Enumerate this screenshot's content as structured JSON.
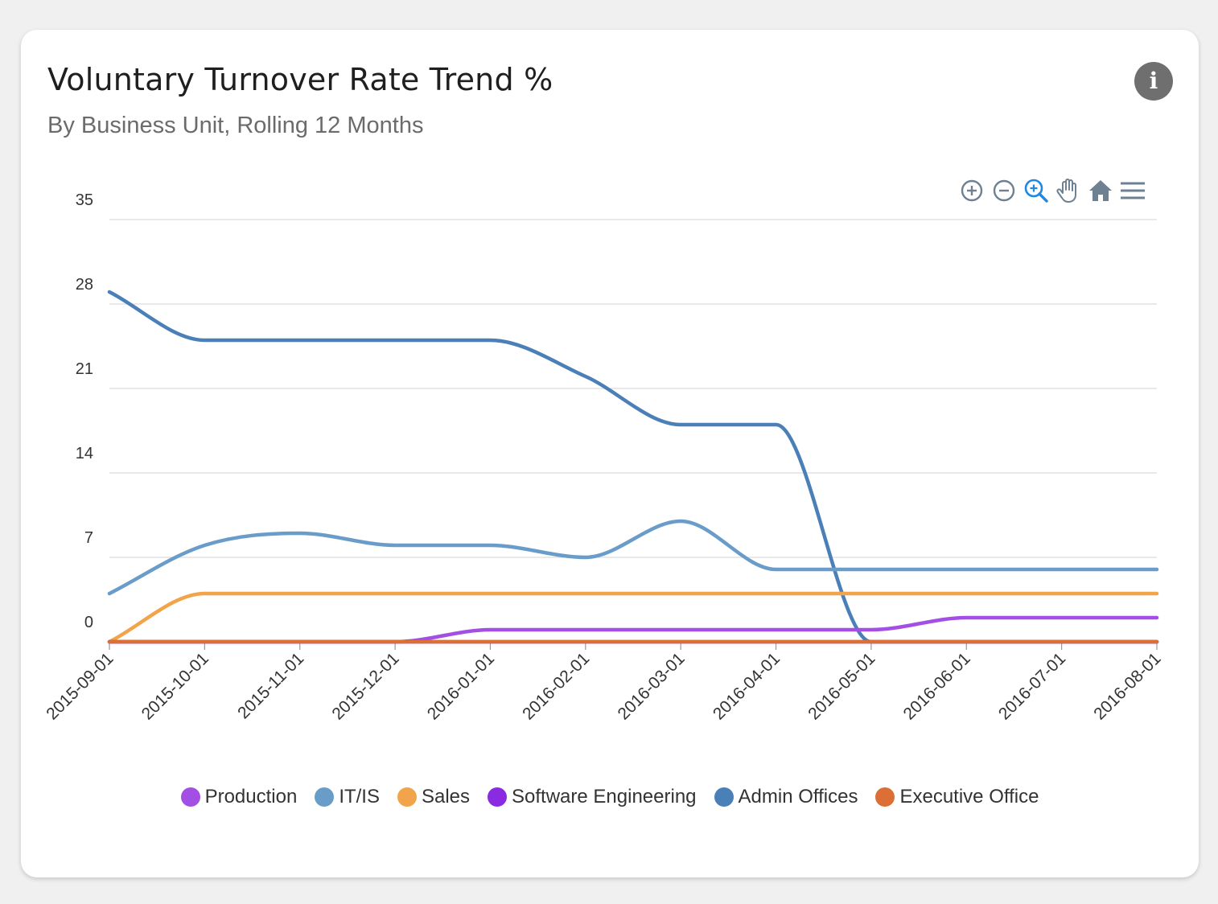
{
  "card": {
    "title": "Voluntary Turnover Rate Trend %",
    "subtitle": "By Business Unit, Rolling 12 Months",
    "info_label": "i"
  },
  "toolbar": {
    "icons": [
      "zoom-in-icon",
      "zoom-out-icon",
      "selection-zoom-icon",
      "pan-icon",
      "reset-home-icon",
      "menu-icon"
    ],
    "active": "selection-zoom-icon",
    "icon_color": "#6e8192",
    "active_color": "#1e88e5"
  },
  "chart_data": {
    "type": "line",
    "x": [
      "2015-09-01",
      "2015-10-01",
      "2015-11-01",
      "2015-12-01",
      "2016-01-01",
      "2016-02-01",
      "2016-03-01",
      "2016-04-01",
      "2016-05-01",
      "2016-06-01",
      "2016-07-01",
      "2016-08-01"
    ],
    "ylim": [
      0,
      35
    ],
    "yticks": [
      0,
      7,
      14,
      21,
      28,
      35
    ],
    "grid": true,
    "legend_position": "bottom",
    "series": [
      {
        "name": "Production",
        "color": "#a34fe6",
        "values": [
          0,
          0,
          0,
          0,
          1,
          1,
          1,
          1,
          1,
          2,
          2,
          2
        ]
      },
      {
        "name": "IT/IS",
        "color": "#6a9cca",
        "values": [
          4,
          8,
          9,
          8,
          8,
          7,
          10,
          6,
          6,
          6,
          6,
          6
        ]
      },
      {
        "name": "Sales",
        "color": "#f1a44a",
        "values": [
          0,
          4,
          4,
          4,
          4,
          4,
          4,
          4,
          4,
          4,
          4,
          4
        ]
      },
      {
        "name": "Software Engineering",
        "color": "#8a2be2",
        "values": [
          0,
          0,
          0,
          0,
          0,
          0,
          0,
          0,
          0,
          0,
          0,
          0
        ]
      },
      {
        "name": "Admin Offices",
        "color": "#4a7fb8",
        "values": [
          29,
          25,
          25,
          25,
          25,
          22,
          18,
          18,
          0,
          0,
          0,
          0
        ]
      },
      {
        "name": "Executive Office",
        "color": "#db6f35",
        "values": [
          0,
          0,
          0,
          0,
          0,
          0,
          0,
          0,
          0,
          0,
          0,
          0
        ]
      }
    ]
  }
}
